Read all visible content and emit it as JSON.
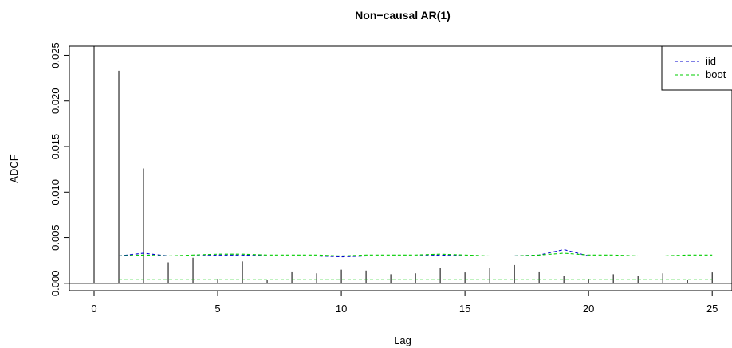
{
  "chart_data": {
    "type": "line",
    "title": "Non−causal AR(1)",
    "xlabel": "Lag",
    "ylabel": "ADCF",
    "xlim": [
      -1,
      25.8
    ],
    "ylim": [
      -0.0008,
      0.026
    ],
    "x_ticks": [
      0,
      5,
      10,
      15,
      20,
      25
    ],
    "x_tick_labels": [
      "0",
      "5",
      "10",
      "15",
      "20",
      "25"
    ],
    "y_ticks": [
      0.0,
      0.005,
      0.01,
      0.015,
      0.02,
      0.025
    ],
    "y_tick_labels": [
      "0.000",
      "0.005",
      "0.010",
      "0.015",
      "0.020",
      "0.025"
    ],
    "zero_line": 0,
    "bars": {
      "name": "ADCF",
      "x": [
        0,
        1,
        2,
        3,
        4,
        5,
        6,
        7,
        8,
        9,
        10,
        11,
        12,
        13,
        14,
        15,
        16,
        17,
        18,
        19,
        20,
        21,
        22,
        23,
        24,
        25
      ],
      "values": [
        0.026,
        0.0233,
        0.0126,
        0.0023,
        0.0028,
        0.0005,
        0.0024,
        0.0004,
        0.0013,
        0.0011,
        0.0015,
        0.0014,
        0.001,
        0.0011,
        0.0017,
        0.0012,
        0.0017,
        0.002,
        0.0013,
        0.0008,
        0.0005,
        0.001,
        0.0008,
        0.0011,
        0.0004,
        0.0012
      ]
    },
    "series": [
      {
        "name": "iid",
        "color": "#0000CD",
        "dash": "dashed",
        "x": [
          1,
          2,
          3,
          4,
          5,
          6,
          7,
          8,
          9,
          10,
          11,
          12,
          13,
          14,
          15,
          16,
          17,
          18,
          19,
          20,
          21,
          22,
          23,
          24,
          25
        ],
        "values": [
          0.003,
          0.0033,
          0.003,
          0.003,
          0.0031,
          0.0031,
          0.003,
          0.003,
          0.003,
          0.0029,
          0.003,
          0.003,
          0.003,
          0.0031,
          0.003,
          0.003,
          0.003,
          0.0031,
          0.0037,
          0.003,
          0.003,
          0.003,
          0.003,
          0.003,
          0.003
        ]
      },
      {
        "name": "boot",
        "color": "#00CD00",
        "dash": "dashed",
        "x": [
          1,
          2,
          3,
          4,
          5,
          6,
          7,
          8,
          9,
          10,
          11,
          12,
          13,
          14,
          15,
          16,
          17,
          18,
          19,
          20,
          21,
          22,
          23,
          24,
          25
        ],
        "values": [
          0.003,
          0.0031,
          0.003,
          0.0031,
          0.0032,
          0.0032,
          0.0031,
          0.0031,
          0.0031,
          0.003,
          0.0031,
          0.0031,
          0.0031,
          0.0032,
          0.0031,
          0.003,
          0.003,
          0.0031,
          0.0033,
          0.0031,
          0.0031,
          0.003,
          0.003,
          0.0031,
          0.0031
        ]
      },
      {
        "name": "",
        "color": "#00CD00",
        "dash": "dashed",
        "x": [
          1,
          25
        ],
        "values": [
          0.0004,
          0.0004
        ]
      }
    ],
    "legend": {
      "position": "top-right",
      "entries": [
        {
          "label": "iid",
          "color": "#0000CD"
        },
        {
          "label": "boot",
          "color": "#00CD00"
        }
      ]
    },
    "grid": false
  }
}
